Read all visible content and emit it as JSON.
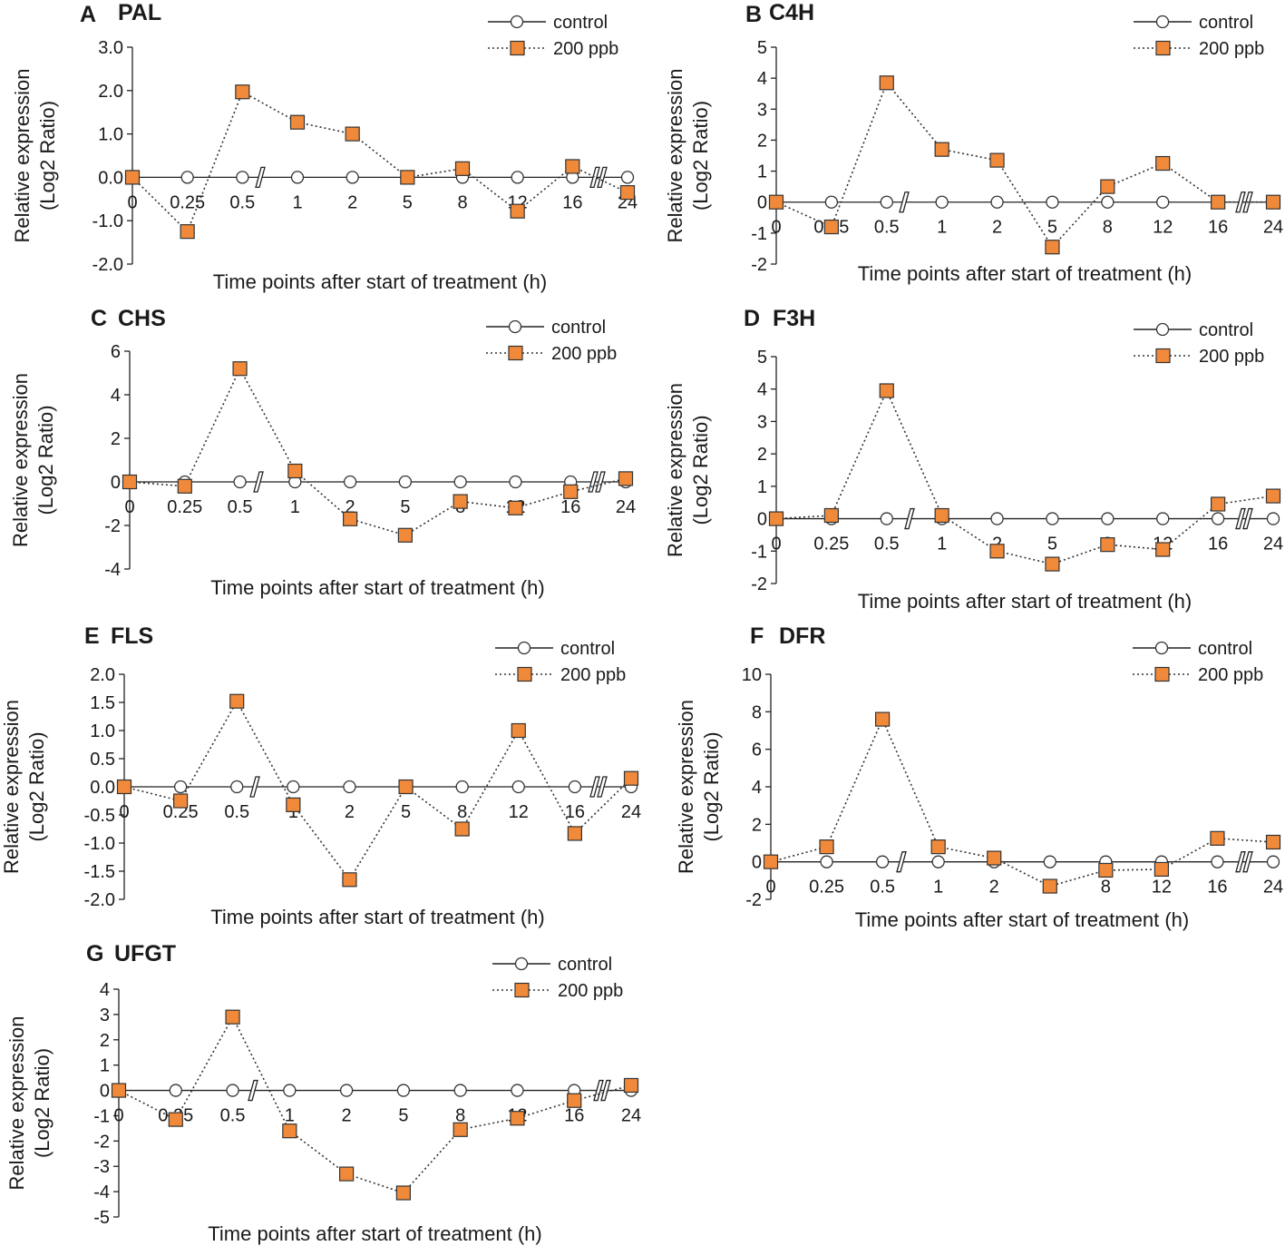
{
  "legend": {
    "control_label": "control",
    "treatment_label": "200 ppb",
    "treatment_color": "#F08A3A",
    "marker_stroke": "#333333"
  },
  "chart_data": [
    {
      "type": "line",
      "panel": "A",
      "title": "PAL",
      "xlabel": "Time points after start of treatment (h)",
      "ylabel_line1": "Relative expression",
      "ylabel_line2": "(Log2 Ratio)",
      "categories": [
        "0",
        "0.25",
        "0.5",
        "1",
        "2",
        "5",
        "8",
        "12",
        "16",
        "24"
      ],
      "ylim": [
        -2,
        3
      ],
      "yticks": [
        -2,
        -1,
        0,
        1,
        2,
        3
      ],
      "ytick_labels": [
        "-2.0",
        "-1.0",
        "0.0",
        "1.0",
        "2.0",
        "3.0"
      ],
      "series": [
        {
          "name": "control",
          "values": [
            0,
            0,
            0,
            0,
            0,
            0,
            0,
            0,
            0,
            0
          ]
        },
        {
          "name": "200 ppb",
          "values": [
            0,
            -1.25,
            1.97,
            1.27,
            1.0,
            0,
            0.2,
            -0.78,
            0.25,
            -0.35
          ]
        }
      ]
    },
    {
      "type": "line",
      "panel": "B",
      "title": "C4H",
      "xlabel": "Time points after start of treatment (h)",
      "ylabel_line1": "Relative expression",
      "ylabel_line2": "(Log2 Ratio)",
      "categories": [
        "0",
        "0.25",
        "0.5",
        "1",
        "2",
        "5",
        "8",
        "12",
        "16",
        "24"
      ],
      "ylim": [
        -2,
        5
      ],
      "yticks": [
        -2,
        -1,
        0,
        1,
        2,
        3,
        4,
        5
      ],
      "ytick_labels": [
        "-2",
        "-1",
        "0",
        "1",
        "2",
        "3",
        "4",
        "5"
      ],
      "series": [
        {
          "name": "control",
          "values": [
            0,
            0,
            0,
            0,
            0,
            0,
            0,
            0,
            0,
            0
          ]
        },
        {
          "name": "200 ppb",
          "values": [
            0,
            -0.8,
            3.85,
            1.7,
            1.35,
            -1.45,
            0.5,
            1.25,
            0,
            0
          ]
        }
      ]
    },
    {
      "type": "line",
      "panel": "C",
      "title": "CHS",
      "xlabel": "Time points after start of treatment (h)",
      "ylabel_line1": "Relative expression",
      "ylabel_line2": "(Log2 Ratio)",
      "categories": [
        "0",
        "0.25",
        "0.5",
        "1",
        "2",
        "5",
        "8",
        "12",
        "16",
        "24"
      ],
      "ylim": [
        -4,
        6
      ],
      "yticks": [
        -4,
        -2,
        0,
        2,
        4,
        6
      ],
      "ytick_labels": [
        "-4",
        "-2",
        "0",
        "2",
        "4",
        "6"
      ],
      "series": [
        {
          "name": "control",
          "values": [
            0,
            0,
            0,
            0,
            0,
            0,
            0,
            0,
            0,
            0
          ]
        },
        {
          "name": "200 ppb",
          "values": [
            0,
            -0.2,
            5.2,
            0.5,
            -1.7,
            -2.45,
            -0.9,
            -1.2,
            -0.45,
            0.15
          ]
        }
      ]
    },
    {
      "type": "line",
      "panel": "D",
      "title": "F3H",
      "xlabel": "Time points after start of treatment (h)",
      "ylabel_line1": "Relative expression",
      "ylabel_line2": "(Log2 Ratio)",
      "categories": [
        "0",
        "0.25",
        "0.5",
        "1",
        "2",
        "5",
        "8",
        "12",
        "16",
        "24"
      ],
      "ylim": [
        -2,
        5
      ],
      "yticks": [
        -2,
        -1,
        0,
        1,
        2,
        3,
        4,
        5
      ],
      "ytick_labels": [
        "-2",
        "-1",
        "0",
        "1",
        "2",
        "3",
        "4",
        "5"
      ],
      "series": [
        {
          "name": "control",
          "values": [
            0,
            0,
            0,
            0,
            0,
            0,
            0,
            0,
            0,
            0
          ]
        },
        {
          "name": "200 ppb",
          "values": [
            0,
            0.1,
            3.95,
            0.1,
            -1.0,
            -1.4,
            -0.8,
            -0.95,
            0.45,
            0.7
          ]
        }
      ]
    },
    {
      "type": "line",
      "panel": "E",
      "title": "FLS",
      "xlabel": "Time points after start of treatment (h)",
      "ylabel_line1": "Relative expression",
      "ylabel_line2": "(Log2 Ratio)",
      "categories": [
        "0",
        "0.25",
        "0.5",
        "1",
        "2",
        "5",
        "8",
        "12",
        "16",
        "24"
      ],
      "ylim": [
        -2,
        2
      ],
      "yticks": [
        -2,
        -1.5,
        -1,
        -0.5,
        0,
        0.5,
        1,
        1.5,
        2
      ],
      "ytick_labels": [
        "-2.0",
        "-1.5",
        "-1.0",
        "-0.5",
        "0.0",
        "0.5",
        "1.0",
        "1.5",
        "2.0"
      ],
      "series": [
        {
          "name": "control",
          "values": [
            0,
            0,
            0,
            0,
            0,
            0,
            0,
            0,
            0,
            0
          ]
        },
        {
          "name": "200 ppb",
          "values": [
            0,
            -0.25,
            1.52,
            -0.32,
            -1.65,
            0,
            -0.75,
            1.0,
            -0.83,
            0.15
          ]
        }
      ]
    },
    {
      "type": "line",
      "panel": "F",
      "title": "DFR",
      "xlabel": "Time points after start of treatment (h)",
      "ylabel_line1": "Relative expression",
      "ylabel_line2": "(Log2 Ratio)",
      "categories": [
        "0",
        "0.25",
        "0.5",
        "1",
        "2",
        "5",
        "8",
        "12",
        "16",
        "24"
      ],
      "ylim": [
        -2,
        10
      ],
      "yticks": [
        -2,
        0,
        2,
        4,
        6,
        8,
        10
      ],
      "ytick_labels": [
        "-2",
        "0",
        "2",
        "4",
        "6",
        "8",
        "10"
      ],
      "series": [
        {
          "name": "control",
          "values": [
            0,
            0,
            0,
            0,
            0,
            0,
            0,
            0,
            0,
            0
          ]
        },
        {
          "name": "200 ppb",
          "values": [
            0,
            0.8,
            7.6,
            0.8,
            0.2,
            -1.3,
            -0.45,
            -0.4,
            1.25,
            1.05
          ]
        }
      ]
    },
    {
      "type": "line",
      "panel": "G",
      "title": "UFGT",
      "xlabel": "Time points after start of treatment (h)",
      "ylabel_line1": "Relative expression",
      "ylabel_line2": "(Log2 Ratio)",
      "categories": [
        "0",
        "0.25",
        "0.5",
        "1",
        "2",
        "5",
        "8",
        "12",
        "16",
        "24"
      ],
      "ylim": [
        -5,
        4
      ],
      "yticks": [
        -5,
        -4,
        -3,
        -2,
        -1,
        0,
        1,
        2,
        3,
        4
      ],
      "ytick_labels": [
        "-5",
        "-4",
        "-3",
        "-2",
        "-1",
        "0",
        "1",
        "2",
        "3",
        "4"
      ],
      "series": [
        {
          "name": "control",
          "values": [
            0,
            0,
            0,
            0,
            0,
            0,
            0,
            0,
            0,
            0
          ]
        },
        {
          "name": "200 ppb",
          "values": [
            0,
            -1.15,
            2.9,
            -1.6,
            -3.3,
            -4.05,
            -1.55,
            -1.1,
            -0.4,
            0.2
          ]
        }
      ]
    }
  ]
}
